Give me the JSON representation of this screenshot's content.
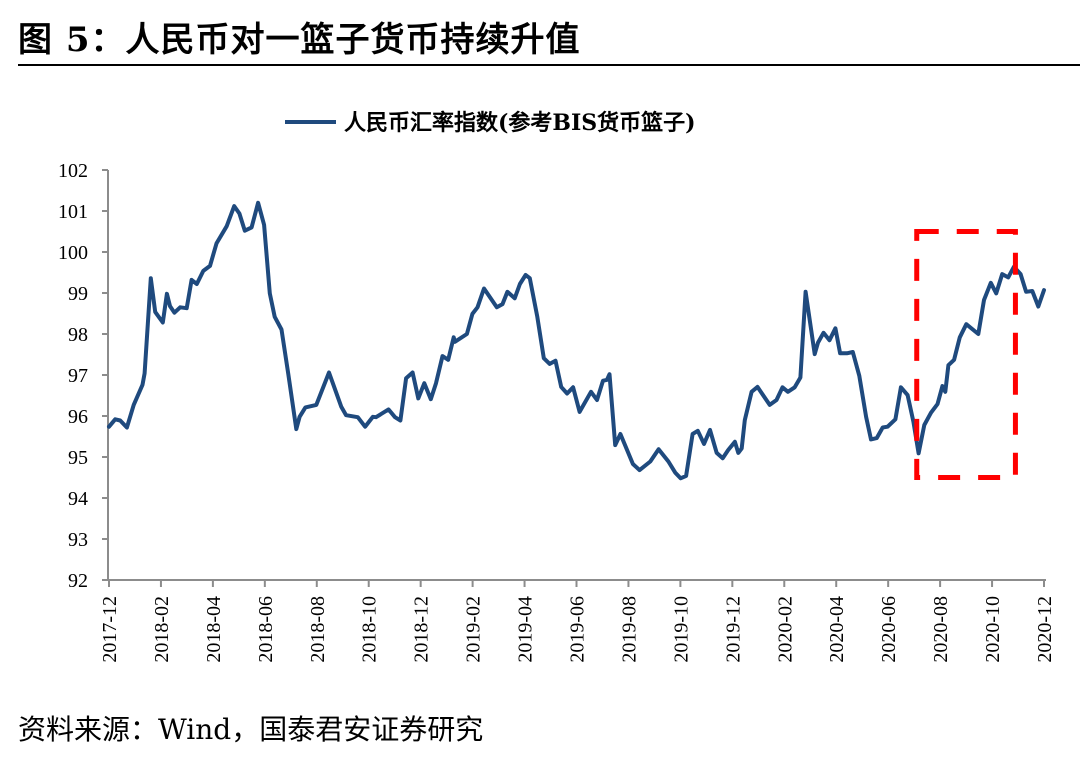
{
  "header": {
    "title": "图 5：人民币对一篮子货币持续升值"
  },
  "footer": {
    "source": "资料来源：Wind，国泰君安证券研究"
  },
  "colors": {
    "line": "#1f4a7e",
    "annotation": "#ff0000",
    "axis": "#8c8c8c"
  },
  "chart_data": {
    "type": "line",
    "title": "",
    "xlabel": "",
    "ylabel": "",
    "x_unit": "months since 2017-12",
    "xlim": [
      0,
      36
    ],
    "ylim": [
      92,
      102
    ],
    "yticks": [
      92,
      93,
      94,
      95,
      96,
      97,
      98,
      99,
      100,
      101,
      102
    ],
    "xtick_labels": [
      "2017-12",
      "2018-02",
      "2018-04",
      "2018-06",
      "2018-08",
      "2018-10",
      "2018-12",
      "2019-02",
      "2019-04",
      "2019-06",
      "2019-08",
      "2019-10",
      "2019-12",
      "2020-02",
      "2020-04",
      "2020-06",
      "2020-08",
      "2020-10",
      "2020-12"
    ],
    "grid": false,
    "legend_position": "top-center",
    "series": [
      {
        "name": "人民币汇率指数(参考BIS货币篮子)",
        "points": [
          [
            0.0,
            95.74
          ],
          [
            0.24,
            95.92
          ],
          [
            0.43,
            95.89
          ],
          [
            0.69,
            95.72
          ],
          [
            0.95,
            96.27
          ],
          [
            1.29,
            96.76
          ],
          [
            1.37,
            97.04
          ],
          [
            1.61,
            99.36
          ],
          [
            1.78,
            98.54
          ],
          [
            2.07,
            98.28
          ],
          [
            2.23,
            98.98
          ],
          [
            2.35,
            98.68
          ],
          [
            2.52,
            98.52
          ],
          [
            2.74,
            98.65
          ],
          [
            2.99,
            98.63
          ],
          [
            3.18,
            99.32
          ],
          [
            3.38,
            99.22
          ],
          [
            3.63,
            99.54
          ],
          [
            3.89,
            99.66
          ],
          [
            4.14,
            100.21
          ],
          [
            4.53,
            100.63
          ],
          [
            4.82,
            101.12
          ],
          [
            5.02,
            100.94
          ],
          [
            5.23,
            100.52
          ],
          [
            5.49,
            100.6
          ],
          [
            5.74,
            101.2
          ],
          [
            5.97,
            100.66
          ],
          [
            6.19,
            98.99
          ],
          [
            6.38,
            98.42
          ],
          [
            6.64,
            98.11
          ],
          [
            6.9,
            97.04
          ],
          [
            7.21,
            95.68
          ],
          [
            7.34,
            95.98
          ],
          [
            7.56,
            96.21
          ],
          [
            7.98,
            96.27
          ],
          [
            8.47,
            97.06
          ],
          [
            8.94,
            96.23
          ],
          [
            9.13,
            96.02
          ],
          [
            9.58,
            95.97
          ],
          [
            9.86,
            95.74
          ],
          [
            10.16,
            95.98
          ],
          [
            10.28,
            95.97
          ],
          [
            10.76,
            96.16
          ],
          [
            11.01,
            95.97
          ],
          [
            11.22,
            95.89
          ],
          [
            11.44,
            96.92
          ],
          [
            11.69,
            97.06
          ],
          [
            11.91,
            96.43
          ],
          [
            12.14,
            96.8
          ],
          [
            12.39,
            96.41
          ],
          [
            12.59,
            96.8
          ],
          [
            12.84,
            97.46
          ],
          [
            13.06,
            97.37
          ],
          [
            13.27,
            97.92
          ],
          [
            13.32,
            97.81
          ],
          [
            13.78,
            98.0
          ],
          [
            13.99,
            98.49
          ],
          [
            14.19,
            98.65
          ],
          [
            14.44,
            99.11
          ],
          [
            14.93,
            98.65
          ],
          [
            15.15,
            98.73
          ],
          [
            15.34,
            99.03
          ],
          [
            15.62,
            98.87
          ],
          [
            15.82,
            99.22
          ],
          [
            16.04,
            99.44
          ],
          [
            16.2,
            99.36
          ],
          [
            16.49,
            98.42
          ],
          [
            16.74,
            97.41
          ],
          [
            16.97,
            97.27
          ],
          [
            17.19,
            97.35
          ],
          [
            17.41,
            96.71
          ],
          [
            17.64,
            96.55
          ],
          [
            17.87,
            96.7
          ],
          [
            18.12,
            96.1
          ],
          [
            18.56,
            96.59
          ],
          [
            18.79,
            96.39
          ],
          [
            19.02,
            96.86
          ],
          [
            19.17,
            96.88
          ],
          [
            19.27,
            97.02
          ],
          [
            19.49,
            95.29
          ],
          [
            19.69,
            95.56
          ],
          [
            20.17,
            94.83
          ],
          [
            20.43,
            94.68
          ],
          [
            20.84,
            94.89
          ],
          [
            21.16,
            95.19
          ],
          [
            21.54,
            94.89
          ],
          [
            21.8,
            94.62
          ],
          [
            22.01,
            94.48
          ],
          [
            22.22,
            94.54
          ],
          [
            22.47,
            95.56
          ],
          [
            22.67,
            95.64
          ],
          [
            22.91,
            95.32
          ],
          [
            23.14,
            95.66
          ],
          [
            23.4,
            95.1
          ],
          [
            23.63,
            94.97
          ],
          [
            23.84,
            95.17
          ],
          [
            24.1,
            95.37
          ],
          [
            24.23,
            95.1
          ],
          [
            24.36,
            95.21
          ],
          [
            24.48,
            95.9
          ],
          [
            24.74,
            96.59
          ],
          [
            24.97,
            96.71
          ],
          [
            25.44,
            96.27
          ],
          [
            25.7,
            96.39
          ],
          [
            25.93,
            96.7
          ],
          [
            26.14,
            96.59
          ],
          [
            26.4,
            96.7
          ],
          [
            26.62,
            96.94
          ],
          [
            26.82,
            99.03
          ],
          [
            27.17,
            97.51
          ],
          [
            27.3,
            97.79
          ],
          [
            27.51,
            98.03
          ],
          [
            27.74,
            97.85
          ],
          [
            27.97,
            98.14
          ],
          [
            28.15,
            97.53
          ],
          [
            28.41,
            97.53
          ],
          [
            28.64,
            97.56
          ],
          [
            28.89,
            96.98
          ],
          [
            29.15,
            95.98
          ],
          [
            29.34,
            95.43
          ],
          [
            29.56,
            95.46
          ],
          [
            29.79,
            95.72
          ],
          [
            29.98,
            95.74
          ],
          [
            30.28,
            95.92
          ],
          [
            30.49,
            96.7
          ],
          [
            30.75,
            96.51
          ],
          [
            30.97,
            95.86
          ],
          [
            31.17,
            95.09
          ],
          [
            31.39,
            95.78
          ],
          [
            31.65,
            96.08
          ],
          [
            31.9,
            96.29
          ],
          [
            32.09,
            96.73
          ],
          [
            32.2,
            96.59
          ],
          [
            32.32,
            97.24
          ],
          [
            32.54,
            97.37
          ],
          [
            32.76,
            97.92
          ],
          [
            33.01,
            98.24
          ],
          [
            33.47,
            98.0
          ],
          [
            33.69,
            98.83
          ],
          [
            33.95,
            99.25
          ],
          [
            34.16,
            98.99
          ],
          [
            34.39,
            99.46
          ],
          [
            34.62,
            99.38
          ],
          [
            34.84,
            99.64
          ],
          [
            35.1,
            99.46
          ],
          [
            35.31,
            99.03
          ],
          [
            35.55,
            99.05
          ],
          [
            35.78,
            98.67
          ],
          [
            36.0,
            99.07
          ]
        ]
      }
    ],
    "annotations": [
      {
        "type": "dashed-rectangle",
        "x": [
          31.1,
          34.9
        ],
        "y": [
          94.5,
          100.5
        ]
      }
    ]
  }
}
